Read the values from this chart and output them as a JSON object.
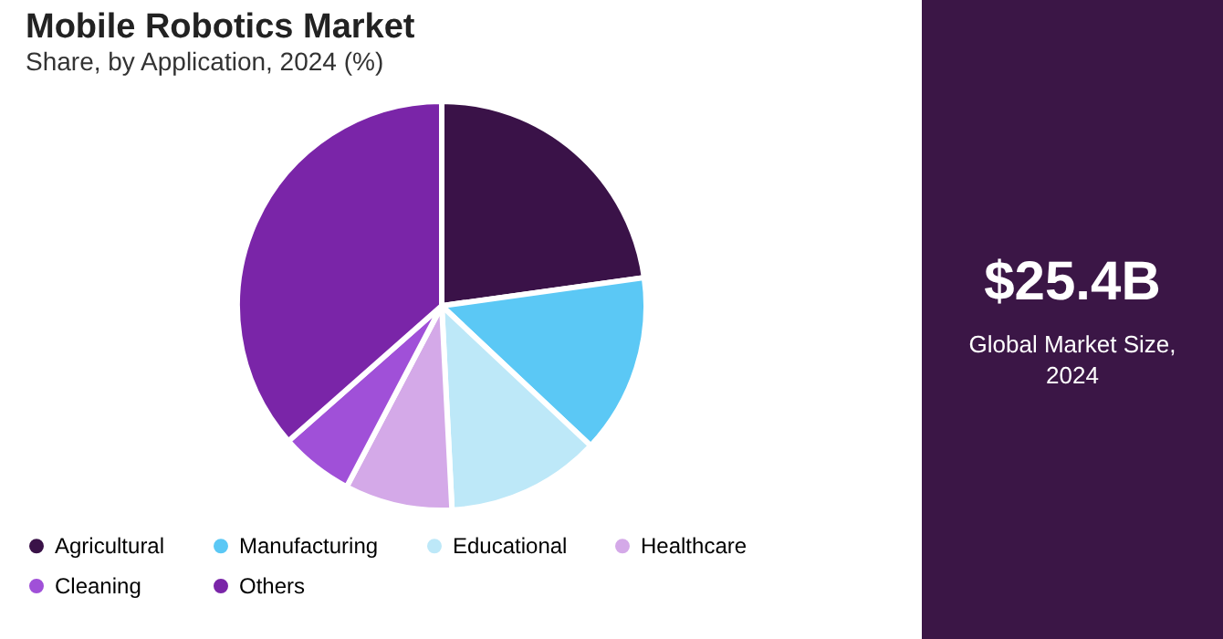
{
  "chart_data": {
    "type": "pie",
    "title": "Mobile Robotics Market",
    "subtitle": "Share, by Application, 2024 (%)",
    "categories": [
      "Agricultural",
      "Manufacturing",
      "Educational",
      "Healthcare",
      "Cleaning",
      "Others"
    ],
    "values": [
      22.8,
      14.2,
      12.2,
      8.5,
      5.8,
      36.5
    ],
    "colors": [
      "#3a1248",
      "#5bc8f5",
      "#bde8f8",
      "#d4a9e8",
      "#a050d8",
      "#7a25a8"
    ],
    "legend": "bottom",
    "annotations": [
      "$25.4B",
      "Global Market Size, 2024"
    ]
  }
}
